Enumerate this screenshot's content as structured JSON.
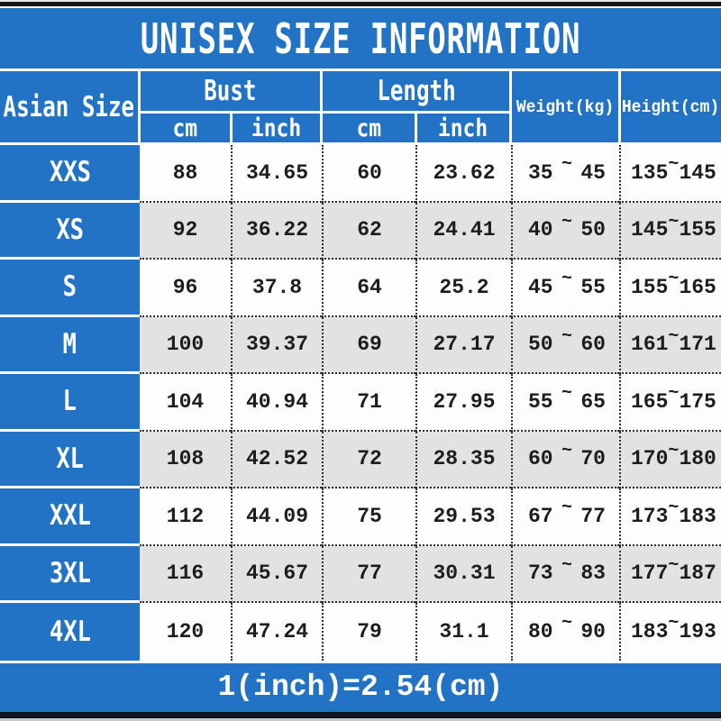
{
  "tilde_glyph": "~",
  "chart_data": {
    "type": "table",
    "title": "UNISEX SIZE INFORMATION",
    "footer_note": "1(inch)=2.54(cm)",
    "header": {
      "size_col": "Asian Size",
      "bust": "Bust",
      "length": "Length",
      "cm": "cm",
      "inch": "inch",
      "weight": "Weight(kg)",
      "height": "Height(cm)"
    },
    "columns": [
      "Asian Size",
      "Bust cm",
      "Bust inch",
      "Length cm",
      "Length inch",
      "Weight(kg) min~max",
      "Height(cm) min~max"
    ],
    "rows": [
      {
        "size": "XXS",
        "bust_cm": "88",
        "bust_in": "34.65",
        "len_cm": "60",
        "len_in": "23.62",
        "w_min": "35",
        "w_max": "45",
        "h_min": "135",
        "h_max": "145"
      },
      {
        "size": "XS",
        "bust_cm": "92",
        "bust_in": "36.22",
        "len_cm": "62",
        "len_in": "24.41",
        "w_min": "40",
        "w_max": "50",
        "h_min": "145",
        "h_max": "155"
      },
      {
        "size": "S",
        "bust_cm": "96",
        "bust_in": "37.8",
        "len_cm": "64",
        "len_in": "25.2",
        "w_min": "45",
        "w_max": "55",
        "h_min": "155",
        "h_max": "165"
      },
      {
        "size": "M",
        "bust_cm": "100",
        "bust_in": "39.37",
        "len_cm": "69",
        "len_in": "27.17",
        "w_min": "50",
        "w_max": "60",
        "h_min": "161",
        "h_max": "171"
      },
      {
        "size": "L",
        "bust_cm": "104",
        "bust_in": "40.94",
        "len_cm": "71",
        "len_in": "27.95",
        "w_min": "55",
        "w_max": "65",
        "h_min": "165",
        "h_max": "175"
      },
      {
        "size": "XL",
        "bust_cm": "108",
        "bust_in": "42.52",
        "len_cm": "72",
        "len_in": "28.35",
        "w_min": "60",
        "w_max": "70",
        "h_min": "170",
        "h_max": "180"
      },
      {
        "size": "XXL",
        "bust_cm": "112",
        "bust_in": "44.09",
        "len_cm": "75",
        "len_in": "29.53",
        "w_min": "67",
        "w_max": "77",
        "h_min": "173",
        "h_max": "183"
      },
      {
        "size": "3XL",
        "bust_cm": "116",
        "bust_in": "45.67",
        "len_cm": "77",
        "len_in": "30.31",
        "w_min": "73",
        "w_max": "83",
        "h_min": "177",
        "h_max": "187"
      },
      {
        "size": "4XL",
        "bust_cm": "120",
        "bust_in": "47.24",
        "len_cm": "79",
        "len_in": "31.1",
        "w_min": "80",
        "w_max": "90",
        "h_min": "183",
        "h_max": "193"
      }
    ]
  },
  "colors": {
    "brand_blue": "#2273c5",
    "row_alt_gray": "#e3e1e2",
    "top_bar_black": "#171717",
    "bottom_bar_navy": "#10151f"
  }
}
